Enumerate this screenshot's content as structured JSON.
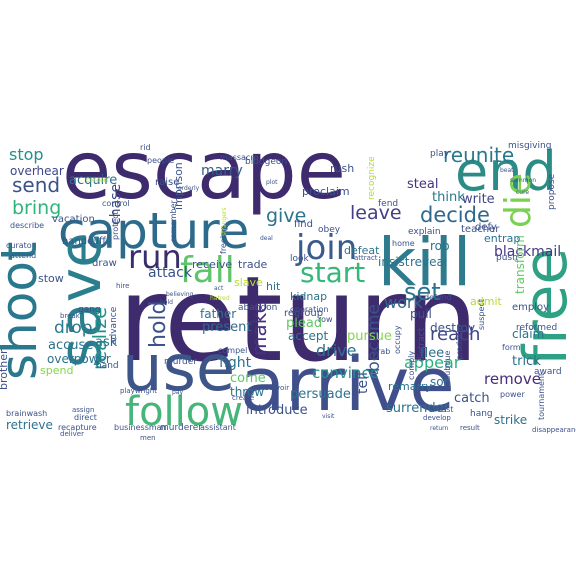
{
  "words": [
    {
      "text": "escape",
      "color": "#3e2b6e"
    },
    {
      "text": "return",
      "color": "#3e2b6e"
    },
    {
      "text": "arrive",
      "color": "#3f4f8b"
    },
    {
      "text": "capture",
      "color": "#2d6b8c"
    },
    {
      "text": "kill",
      "color": "#2f7b8e"
    },
    {
      "text": "end",
      "color": "#2b8c86"
    },
    {
      "text": "save",
      "color": "#2a7f8e"
    },
    {
      "text": "use",
      "color": "#3d5589"
    },
    {
      "text": "free",
      "color": "#2ea083"
    },
    {
      "text": "shoot",
      "color": "#2a788e"
    },
    {
      "text": "follow",
      "color": "#45b57a"
    },
    {
      "text": "fall",
      "color": "#5fc46b"
    },
    {
      "text": "join",
      "color": "#3a5c8c"
    },
    {
      "text": "run",
      "color": "#3a2d6b"
    },
    {
      "text": "die",
      "color": "#7ad151"
    },
    {
      "text": "start",
      "color": "#35b779"
    },
    {
      "text": "decide",
      "color": "#31688e"
    },
    {
      "text": "reunite",
      "color": "#2a788e"
    },
    {
      "text": "send",
      "color": "#3b528b"
    },
    {
      "text": "bring",
      "color": "#2fb47c"
    },
    {
      "text": "leave",
      "color": "#433e85"
    },
    {
      "text": "give",
      "color": "#2c738e"
    },
    {
      "text": "hold",
      "color": "#3b528b"
    },
    {
      "text": "realize",
      "color": "#21918c"
    },
    {
      "text": "make",
      "color": "#46327e"
    },
    {
      "text": "become",
      "color": "#3b528b"
    },
    {
      "text": "set",
      "color": "#2c728e"
    },
    {
      "text": "work",
      "color": "#31688e"
    },
    {
      "text": "stop",
      "color": "#21918c"
    },
    {
      "text": "drop",
      "color": "#2a788e"
    },
    {
      "text": "reach",
      "color": "#414487"
    },
    {
      "text": "appear",
      "color": "#2ab07f"
    },
    {
      "text": "drive",
      "color": "#2c728e"
    },
    {
      "text": "convince",
      "color": "#21918c"
    },
    {
      "text": "remove",
      "color": "#472d7b"
    },
    {
      "text": "blackmail",
      "color": "#443983"
    },
    {
      "text": "overhear",
      "color": "#3f4788"
    },
    {
      "text": "marry",
      "color": "#375a8c"
    },
    {
      "text": "steal",
      "color": "#46337f"
    },
    {
      "text": "write",
      "color": "#414487"
    },
    {
      "text": "think",
      "color": "#2a768e"
    },
    {
      "text": "attack",
      "color": "#3b528b"
    },
    {
      "text": "chase",
      "color": "#3f4788"
    },
    {
      "text": "fight",
      "color": "#2c728e"
    },
    {
      "text": "present",
      "color": "#31688e"
    },
    {
      "text": "persuade",
      "color": "#2c728e"
    },
    {
      "text": "tell",
      "color": "#3b528b"
    },
    {
      "text": "catch",
      "color": "#3b528b"
    },
    {
      "text": "introduce",
      "color": "#3b528b"
    },
    {
      "text": "surrender",
      "color": "#2c728e"
    },
    {
      "text": "accuse",
      "color": "#2c728e"
    },
    {
      "text": "overpower",
      "color": "#2c728e"
    },
    {
      "text": "ask",
      "color": "#2c728e"
    },
    {
      "text": "acquire",
      "color": "#2c728e"
    },
    {
      "text": "come",
      "color": "#5ec962"
    },
    {
      "text": "throw",
      "color": "#2c728e"
    },
    {
      "text": "plead",
      "color": "#5ec962"
    },
    {
      "text": "accept",
      "color": "#2c728e"
    },
    {
      "text": "pursue",
      "color": "#86d549"
    },
    {
      "text": "flee",
      "color": "#2c728e"
    },
    {
      "text": "destroy",
      "color": "#3b528b"
    },
    {
      "text": "transform",
      "color": "#5ec962"
    },
    {
      "text": "insist",
      "color": "#2c728e"
    },
    {
      "text": "reveal",
      "color": "#2c728e"
    },
    {
      "text": "trick",
      "color": "#2c728e"
    },
    {
      "text": "claim",
      "color": "#2c728e"
    },
    {
      "text": "strike",
      "color": "#2c728e"
    },
    {
      "text": "son",
      "color": "#2c728e"
    },
    {
      "text": "remarry",
      "color": "#2c728e"
    },
    {
      "text": "retrieve",
      "color": "#2c728e"
    },
    {
      "text": "spend",
      "color": "#86d549"
    },
    {
      "text": "father",
      "color": "#2c728e"
    },
    {
      "text": "hit",
      "color": "#2c728e"
    },
    {
      "text": "kidnap",
      "color": "#2c728e"
    },
    {
      "text": "pull",
      "color": "#3b528b"
    },
    {
      "text": "rob",
      "color": "#2c728e"
    },
    {
      "text": "entrap",
      "color": "#2c728e"
    },
    {
      "text": "defeat",
      "color": "#2c728e"
    },
    {
      "text": "imprison",
      "color": "#3b528b"
    },
    {
      "text": "receive",
      "color": "#3b528b"
    },
    {
      "text": "trade",
      "color": "#3b528b"
    },
    {
      "text": "slave",
      "color": "#b5de2b"
    },
    {
      "text": "raise",
      "color": "#3b528b"
    },
    {
      "text": "proclaim",
      "color": "#3b528b"
    },
    {
      "text": "rush",
      "color": "#3b528b"
    },
    {
      "text": "vacation",
      "color": "#3b528b"
    },
    {
      "text": "handcuff",
      "color": "#3b528b"
    },
    {
      "text": "brother",
      "color": "#3b528b"
    },
    {
      "text": "stow",
      "color": "#3b528b"
    },
    {
      "text": "draw",
      "color": "#3b528b"
    },
    {
      "text": "find",
      "color": "#3b528b"
    },
    {
      "text": "regroup",
      "color": "#3b528b"
    },
    {
      "text": "admit",
      "color": "#b5de2b"
    },
    {
      "text": "employ",
      "color": "#3b528b"
    },
    {
      "text": "reformed",
      "color": "#3b528b"
    },
    {
      "text": "award",
      "color": "#3b528b"
    },
    {
      "text": "tournament",
      "color": "#3b528b"
    },
    {
      "text": "hang",
      "color": "#3b528b"
    },
    {
      "text": "murderer",
      "color": "#3b528b"
    },
    {
      "text": "businessman",
      "color": "#3b528b"
    },
    {
      "text": "assistant",
      "color": "#3b528b"
    },
    {
      "text": "recapture",
      "color": "#3b528b"
    },
    {
      "text": "brainwash",
      "color": "#3b528b"
    },
    {
      "text": "hand",
      "color": "#3b528b"
    },
    {
      "text": "gang",
      "color": "#3b528b"
    },
    {
      "text": "advance",
      "color": "#3b528b"
    },
    {
      "text": "murder",
      "color": "#3b528b"
    },
    {
      "text": "compel",
      "color": "#3b528b"
    },
    {
      "text": "occupy",
      "color": "#3b528b"
    },
    {
      "text": "comply",
      "color": "#3b528b"
    },
    {
      "text": "producer",
      "color": "#3b528b"
    },
    {
      "text": "defend",
      "color": "#3b528b"
    },
    {
      "text": "distract",
      "color": "#3b528b"
    },
    {
      "text": "teacher",
      "color": "#3b528b"
    },
    {
      "text": "explain",
      "color": "#3b528b"
    },
    {
      "text": "home",
      "color": "#3b528b"
    },
    {
      "text": "grab",
      "color": "#3b528b"
    },
    {
      "text": "defy",
      "color": "#3b528b"
    },
    {
      "text": "fend",
      "color": "#3b528b"
    },
    {
      "text": "push",
      "color": "#3b528b"
    },
    {
      "text": "propose",
      "color": "#3b528b"
    },
    {
      "text": "misgiving",
      "color": "#3b528b"
    },
    {
      "text": "play",
      "color": "#3b528b"
    },
    {
      "text": "recognize",
      "color": "#b5de2b"
    },
    {
      "text": "obey",
      "color": "#3b528b"
    },
    {
      "text": "abandon",
      "color": "#3b528b"
    },
    {
      "text": "look",
      "color": "#3b528b"
    },
    {
      "text": "operation",
      "color": "#3b528b"
    },
    {
      "text": "row",
      "color": "#3b528b"
    },
    {
      "text": "reservoir",
      "color": "#3b528b"
    },
    {
      "text": "arrest",
      "color": "#3b528b"
    },
    {
      "text": "suspect",
      "color": "#3b528b"
    },
    {
      "text": "form",
      "color": "#3b528b"
    },
    {
      "text": "subdue",
      "color": "#3b528b"
    },
    {
      "text": "bludgeon",
      "color": "#3b528b"
    },
    {
      "text": "massacre",
      "color": "#3b528b"
    },
    {
      "text": "people",
      "color": "#3b528b"
    },
    {
      "text": "rid",
      "color": "#3b528b"
    },
    {
      "text": "curator",
      "color": "#3b528b"
    },
    {
      "text": "describe",
      "color": "#3b528b"
    },
    {
      "text": "attend",
      "color": "#3b528b"
    },
    {
      "text": "protect",
      "color": "#3b528b"
    },
    {
      "text": "remember",
      "color": "#3b528b"
    },
    {
      "text": "direct",
      "color": "#3b528b"
    },
    {
      "text": "assign",
      "color": "#3b528b"
    },
    {
      "text": "deliver",
      "color": "#3b528b"
    },
    {
      "text": "control",
      "color": "#3b528b"
    },
    {
      "text": "power",
      "color": "#3b528b"
    },
    {
      "text": "attract",
      "color": "#3b528b"
    },
    {
      "text": "disappearance",
      "color": "#3b528b"
    },
    {
      "text": "result",
      "color": "#3b528b"
    },
    {
      "text": "men",
      "color": "#3b528b"
    },
    {
      "text": "create",
      "color": "#3b528b"
    },
    {
      "text": "develop",
      "color": "#3b528b"
    },
    {
      "text": "hire",
      "color": "#3b528b"
    },
    {
      "text": "playwright",
      "color": "#3b528b"
    },
    {
      "text": "freeing",
      "color": "#3b528b"
    },
    {
      "text": "break",
      "color": "#3b528b"
    },
    {
      "text": "concert",
      "color": "#b5de2b"
    },
    {
      "text": "deal",
      "color": "#3b528b"
    },
    {
      "text": "pay",
      "color": "#3b528b"
    },
    {
      "text": "hatred",
      "color": "#b5de2b"
    },
    {
      "text": "return",
      "color": "#3b528b"
    },
    {
      "text": "summon",
      "color": "#3b528b"
    },
    {
      "text": "cure",
      "color": "#3b528b"
    },
    {
      "text": "beat",
      "color": "#3b528b"
    },
    {
      "text": "act",
      "color": "#3b528b"
    },
    {
      "text": "believing",
      "color": "#3b528b"
    },
    {
      "text": "visit",
      "color": "#3b528b"
    },
    {
      "text": "orderly",
      "color": "#3b528b"
    },
    {
      "text": "plot",
      "color": "#3b528b"
    },
    {
      "text": "strangers",
      "color": "#b5de2b"
    },
    {
      "text": "hold",
      "color": "#3b528b"
    }
  ]
}
